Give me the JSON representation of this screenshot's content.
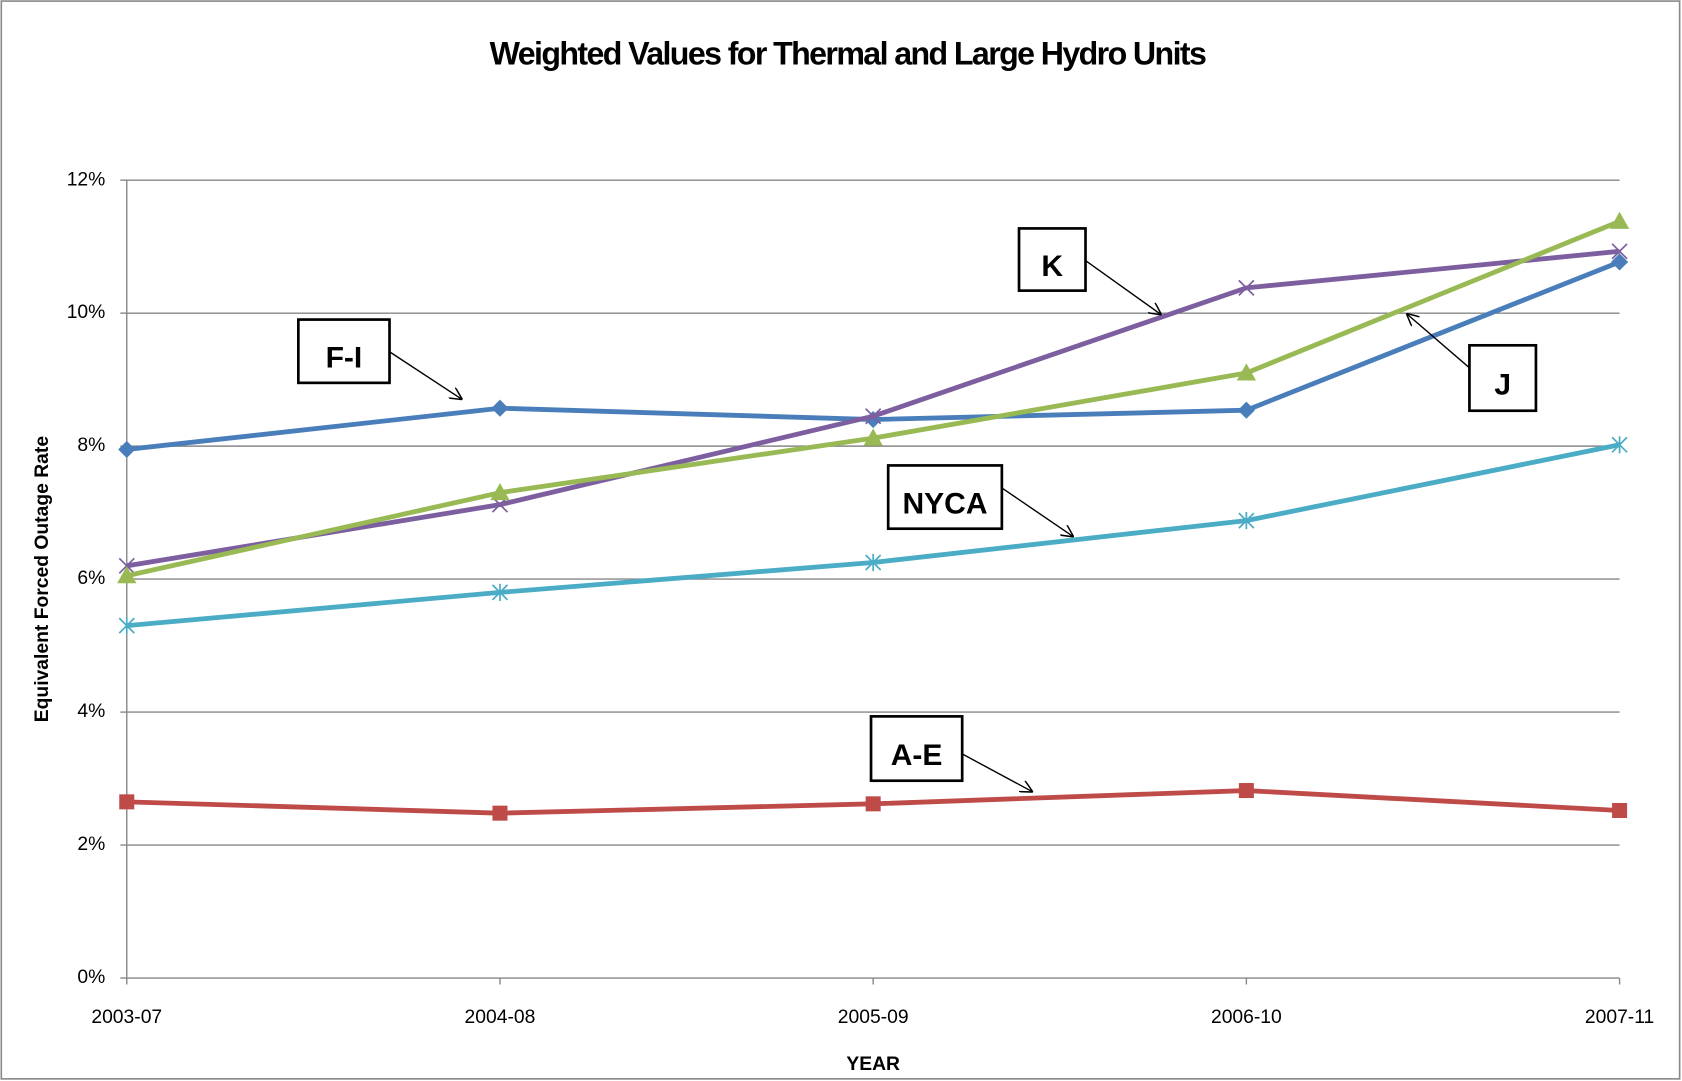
{
  "chart_data": {
    "type": "line",
    "title": "Weighted Values for Thermal and Large Hydro Units",
    "x_label": "YEAR",
    "y_label": "Equivalent  Forced Outage Rate",
    "categories": [
      "2003-07",
      "2004-08",
      "2005-09",
      "2006-10",
      "2007-11"
    ],
    "ylim": [
      0,
      12
    ],
    "yticks": [
      {
        "value": 0,
        "label": "0%"
      },
      {
        "value": 2,
        "label": "2%"
      },
      {
        "value": 4,
        "label": "4%"
      },
      {
        "value": 6,
        "label": "6%"
      },
      {
        "value": 8,
        "label": "8%"
      },
      {
        "value": 10,
        "label": "10%"
      },
      {
        "value": 12,
        "label": "12%"
      }
    ],
    "grid": true,
    "series": [
      {
        "name": "F-I",
        "color": "#4a7ebb",
        "marker": "diamond",
        "values": [
          7.95,
          8.57,
          8.4,
          8.54,
          10.77
        ]
      },
      {
        "name": "A-E",
        "color": "#be4b48",
        "marker": "square",
        "values": [
          2.65,
          2.48,
          2.62,
          2.82,
          2.52
        ]
      },
      {
        "name": "K",
        "color": "#7d5fa0",
        "marker": "x",
        "values": [
          6.2,
          7.12,
          8.45,
          10.38,
          10.93
        ]
      },
      {
        "name": "J",
        "color": "#98b954",
        "marker": "triangle",
        "values": [
          6.05,
          7.3,
          8.12,
          9.1,
          11.38
        ]
      },
      {
        "name": "NYCA",
        "color": "#4bacc6",
        "marker": "star",
        "values": [
          5.3,
          5.8,
          6.25,
          6.88,
          8.02
        ]
      }
    ]
  }
}
